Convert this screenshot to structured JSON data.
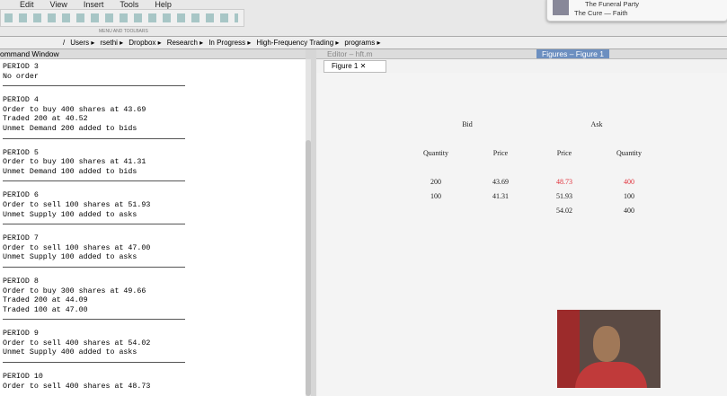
{
  "menu": [
    "Edit",
    "View",
    "Insert",
    "Tools",
    "Help"
  ],
  "toolbar_label": "MENU AND TOOLBARS",
  "notification": {
    "title": "The Funeral Party",
    "subtitle": "The Cure — Faith"
  },
  "path": [
    "/",
    "Users",
    "rsethi",
    "Dropbox",
    "Research",
    "In Progress",
    "High-Frequency Trading",
    "programs"
  ],
  "command_window": {
    "title": "ommand Window",
    "periods": [
      {
        "title": "PERIOD 3",
        "lines": [
          "No order"
        ]
      },
      {
        "title": "PERIOD 4",
        "lines": [
          "Order to buy 400 shares at 43.69",
          "Traded 200 at 40.52",
          "Unmet Demand 200 added to bids"
        ]
      },
      {
        "title": "PERIOD 5",
        "lines": [
          "Order to buy 100 shares at 41.31",
          "Unmet Demand 100 added to bids"
        ]
      },
      {
        "title": "PERIOD 6",
        "lines": [
          "Order to sell 100 shares at 51.93",
          "Unmet Supply 100 added to asks"
        ]
      },
      {
        "title": "PERIOD 7",
        "lines": [
          "Order to sell 100 shares at 47.00",
          "Unmet Supply 100 added to asks"
        ]
      },
      {
        "title": "PERIOD 8",
        "lines": [
          "Order to buy 300 shares at 49.66",
          "Traded 200 at 44.09",
          "Traded 100 at 47.00"
        ]
      },
      {
        "title": "PERIOD 9",
        "lines": [
          "Order to sell 400 shares at 54.02",
          "Unmet Supply 400 added to asks"
        ]
      },
      {
        "title": "PERIOD 10",
        "lines": [
          "Order to sell 400 shares at 48.73"
        ]
      }
    ]
  },
  "editor_tab": "Editor – hft.m",
  "figures_tab": "Figures – Figure 1",
  "figure_tab": "Figure 1",
  "order_book": {
    "bid_title": "Bid",
    "ask_title": "Ask",
    "columns": [
      "Quantity",
      "Price",
      "Price",
      "Quantity"
    ],
    "bids": [
      [
        "200",
        "43.69"
      ],
      [
        "100",
        "41.31"
      ]
    ],
    "asks": [
      [
        "48.73",
        "400"
      ],
      [
        "51.93",
        "100"
      ],
      [
        "54.02",
        "400"
      ]
    ]
  }
}
